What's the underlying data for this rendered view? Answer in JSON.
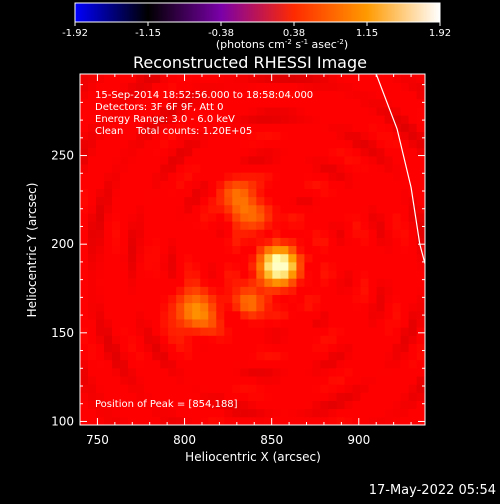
{
  "colorbar": {
    "ticks": [
      "-1.92",
      "-1.15",
      "-0.38",
      "0.38",
      "1.15",
      "1.92"
    ],
    "unit_parts": [
      "(photons cm",
      "-2",
      " s",
      "-1",
      " asec",
      "-2",
      ")"
    ],
    "stops": [
      "#0000ff",
      "#000000",
      "#7a00a8",
      "#ff2a00",
      "#ff9a00",
      "#ffffff"
    ]
  },
  "chart_data": {
    "type": "heatmap",
    "title": "Reconstructed RHESSI Image",
    "xlabel": "Heliocentric X (arcsec)",
    "ylabel": "Heliocentric Y (arcsec)",
    "xlim": [
      740,
      938
    ],
    "ylim": [
      98,
      296
    ],
    "xticks": [
      750,
      800,
      850,
      900
    ],
    "yticks": [
      100,
      150,
      200,
      250
    ],
    "info_lines": [
      "15-Sep-2014 18:52:56.000 to 18:58:04.000",
      "Detectors: 3F 6F 9F, Att 0",
      "Energy Range: 3.0 - 6.0 keV",
      "Clean    Total counts: 1.20E+05"
    ],
    "peak_note": "Position of Peak = [854,188]",
    "peak": [
      854,
      188
    ],
    "sources": [
      {
        "x": 854,
        "y": 188,
        "sigma": 8,
        "amp": 1.0
      },
      {
        "x": 806,
        "y": 162,
        "sigma": 9,
        "amp": 0.55
      },
      {
        "x": 836,
        "y": 220,
        "sigma": 8,
        "amp": 0.45
      },
      {
        "x": 838,
        "y": 168,
        "sigma": 7,
        "amp": 0.35
      },
      {
        "x": 828,
        "y": 230,
        "sigma": 6,
        "amp": 0.25
      }
    ],
    "limb": [
      [
        910,
        296
      ],
      [
        922,
        265
      ],
      [
        930,
        232
      ],
      [
        935,
        200
      ],
      [
        938,
        189
      ]
    ]
  },
  "footer": {
    "timestamp": "17-May-2022 05:54"
  }
}
